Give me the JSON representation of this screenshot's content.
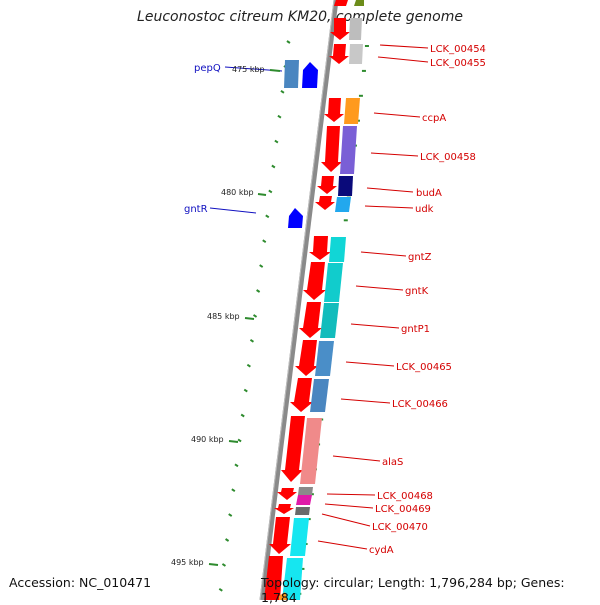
{
  "title": "Leuconostoc citreum KM20, complete genome",
  "accession": "Accession: NC_010471",
  "topology": "Topology: circular; Length: 1,796,284 bp; Genes: 1,784",
  "colors": {
    "backbone": "#8a8a8a",
    "tick": "#2e8b2e",
    "label_red": "#d40000",
    "label_blue": "#1010c0",
    "gene_red": "#ff0000",
    "gene_blue": "#0000ff"
  },
  "scale_labels": [
    "475 kbp",
    "480 kbp",
    "485 kbp",
    "490 kbp",
    "495 kbp"
  ],
  "genes": [
    {
      "label": "LCK_00454",
      "strand": "minus",
      "cog_color": "#bdbdbd"
    },
    {
      "label": "LCK_00455",
      "strand": "minus",
      "cog_color": "#c8c8c8"
    },
    {
      "label": "pepQ",
      "strand": "plus",
      "cog_color": "#4a86c0"
    },
    {
      "label": "ccpA",
      "strand": "minus",
      "cog_color": "#ff9a1e"
    },
    {
      "label": "LCK_00458",
      "strand": "minus",
      "cog_color": "#7a5fd6"
    },
    {
      "label": "budA",
      "strand": "minus",
      "cog_color": "#0a0a7a"
    },
    {
      "label": "udk",
      "strand": "minus",
      "cog_color": "#22a8ee"
    },
    {
      "label": "gntR",
      "strand": "plus",
      "cog_color": ""
    },
    {
      "label": "gntZ",
      "strand": "minus",
      "cog_color": "#11d6d6"
    },
    {
      "label": "gntK",
      "strand": "minus",
      "cog_color": "#11cccc"
    },
    {
      "label": "gntP1",
      "strand": "minus",
      "cog_color": "#12bcbc"
    },
    {
      "label": "LCK_00465",
      "strand": "minus",
      "cog_color": "#4a8ec8"
    },
    {
      "label": "LCK_00466",
      "strand": "minus",
      "cog_color": "#4a86c0"
    },
    {
      "label": "alaS",
      "strand": "minus",
      "cog_color": "#f08a8a"
    },
    {
      "label": "LCK_00468",
      "strand": "minus",
      "cog_color": "#8a8a8a"
    },
    {
      "label": "LCK_00469",
      "strand": "minus",
      "cog_color": "#e01aa8"
    },
    {
      "label": "LCK_00470",
      "strand": "minus",
      "cog_color": "#6a6a6a"
    },
    {
      "label": "cydA",
      "strand": "minus",
      "cog_color": "#16e6f0"
    }
  ]
}
